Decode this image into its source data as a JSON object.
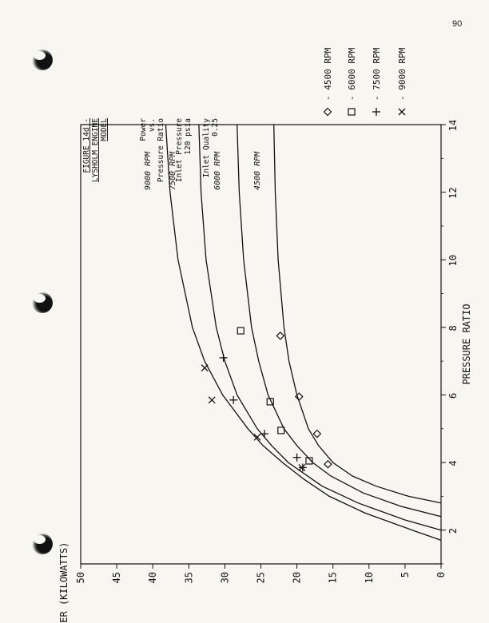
{
  "page": {
    "page_number": "90"
  },
  "figure": {
    "caption_lines": [
      "FIGURE 14d -",
      "LYSHOLM ENGINE",
      "MODEL"
    ],
    "description_block_1": [
      "Power",
      "vs.",
      "Pressure Ratio"
    ],
    "description_block_2": [
      "Inlet Pressure",
      "120 psia"
    ],
    "description_block_3": [
      "Inlet Quality",
      "0.25"
    ]
  },
  "chart_data": {
    "type": "scatter",
    "xlabel": "PRESSURE RATIO",
    "ylabel": "POWER (KILOWATTS)",
    "xlim": [
      1,
      14
    ],
    "ylim": [
      0,
      50
    ],
    "x_ticks": [
      "2",
      "4",
      "6",
      "8",
      "10",
      "12",
      "14"
    ],
    "y_ticks": [
      "0",
      "5",
      "10",
      "15",
      "20",
      "25",
      "30",
      "35",
      "40",
      "45",
      "50"
    ],
    "rotated": "figure rotated 90 degrees counter-clockwise on page",
    "curve_labels": [
      "9000 RPM",
      "7500 RPM",
      "6000 RPM",
      "4500 RPM"
    ],
    "legend": [
      {
        "marker": "diamond",
        "label": "- 4500 RPM"
      },
      {
        "marker": "square",
        "label": "- 6000 RPM"
      },
      {
        "marker": "plus",
        "label": "- 7500 RPM"
      },
      {
        "marker": "cross",
        "label": "- 9000 RPM"
      }
    ],
    "legend_placement": "right",
    "grid": false,
    "series": [
      {
        "name": "4500 RPM",
        "marker": "diamond",
        "points": [
          [
            3.95,
            15.7
          ],
          [
            4.85,
            17.2
          ],
          [
            5.95,
            19.7
          ],
          [
            7.75,
            22.3
          ]
        ],
        "curve": [
          [
            2.8,
            0
          ],
          [
            3.0,
            4.5
          ],
          [
            3.3,
            9.0
          ],
          [
            3.6,
            12.3
          ],
          [
            4.0,
            15.0
          ],
          [
            4.5,
            17.0
          ],
          [
            5.0,
            18.4
          ],
          [
            6.0,
            20.0
          ],
          [
            7.0,
            21.1
          ],
          [
            8.0,
            21.8
          ],
          [
            10.0,
            22.6
          ],
          [
            12.0,
            23.0
          ],
          [
            14.0,
            23.2
          ]
        ]
      },
      {
        "name": "6000 RPM",
        "marker": "square",
        "points": [
          [
            4.05,
            18.3
          ],
          [
            4.95,
            22.2
          ],
          [
            5.8,
            23.7
          ],
          [
            7.9,
            27.8
          ]
        ],
        "curve": [
          [
            2.4,
            0
          ],
          [
            2.7,
            5.5
          ],
          [
            3.1,
            10.8
          ],
          [
            3.6,
            15.3
          ],
          [
            4.0,
            17.8
          ],
          [
            4.5,
            20.0
          ],
          [
            5.0,
            21.8
          ],
          [
            6.0,
            24.0
          ],
          [
            7.0,
            25.3
          ],
          [
            8.0,
            26.3
          ],
          [
            10.0,
            27.4
          ],
          [
            12.0,
            28.0
          ],
          [
            14.0,
            28.3
          ]
        ]
      },
      {
        "name": "7500 RPM",
        "marker": "plus",
        "points": [
          [
            3.85,
            19.2
          ],
          [
            4.15,
            20.0
          ],
          [
            4.85,
            24.5
          ],
          [
            5.85,
            28.8
          ],
          [
            7.1,
            30.2
          ]
        ],
        "curve": [
          [
            2.0,
            0
          ],
          [
            2.3,
            5.0
          ],
          [
            2.8,
            11.5
          ],
          [
            3.3,
            16.5
          ],
          [
            4.0,
            21.2
          ],
          [
            4.5,
            23.5
          ],
          [
            5.0,
            25.5
          ],
          [
            6.0,
            28.3
          ],
          [
            7.0,
            30.0
          ],
          [
            8.0,
            31.2
          ],
          [
            10.0,
            32.6
          ],
          [
            12.0,
            33.3
          ],
          [
            14.0,
            33.6
          ]
        ]
      },
      {
        "name": "9000 RPM",
        "marker": "cross",
        "points": [
          [
            3.85,
            19.3
          ],
          [
            4.75,
            25.5
          ],
          [
            5.85,
            31.8
          ],
          [
            6.8,
            32.8
          ]
        ],
        "curve": [
          [
            1.7,
            0
          ],
          [
            2.0,
            4.0
          ],
          [
            2.5,
            10.5
          ],
          [
            3.0,
            15.5
          ],
          [
            3.5,
            19.0
          ],
          [
            4.0,
            22.0
          ],
          [
            4.5,
            24.7
          ],
          [
            5.0,
            26.8
          ],
          [
            6.0,
            30.3
          ],
          [
            7.0,
            32.8
          ],
          [
            8.0,
            34.5
          ],
          [
            10.0,
            36.5
          ],
          [
            12.0,
            37.6
          ],
          [
            14.0,
            38.2
          ]
        ]
      }
    ]
  }
}
